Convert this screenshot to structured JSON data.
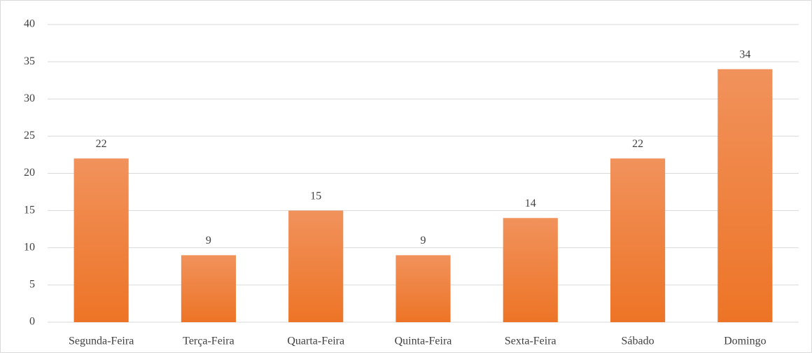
{
  "chart_data": {
    "type": "bar",
    "categories": [
      "Segunda-Feira",
      "Terça-Feira",
      "Quarta-Feira",
      "Quinta-Feira",
      "Sexta-Feira",
      "Sábado",
      "Domingo"
    ],
    "values": [
      22,
      9,
      15,
      9,
      14,
      22,
      34
    ],
    "color": "#ed7426",
    "ylim": [
      0,
      40
    ],
    "yticks": [
      0,
      5,
      10,
      15,
      20,
      25,
      30,
      35,
      40
    ],
    "grid": true
  }
}
